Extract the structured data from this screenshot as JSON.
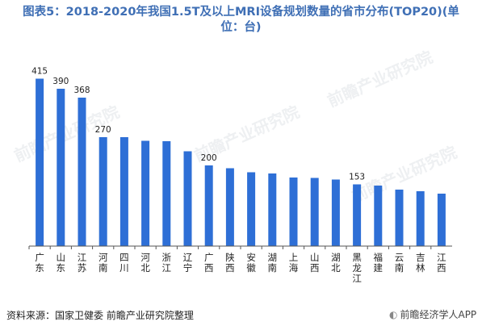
{
  "title_line1": "图表5：2018-2020年我国1.5T及以上MRI设备规划数量的省市分布(TOP20)(单",
  "title_line2": "位：台)",
  "source": "资料来源：国家卫健委 前瞻产业研究院整理",
  "watermark": "前瞻产业研究院",
  "app_logo": "前瞻经济学人APP",
  "colors": {
    "bar": "#2e6fd6",
    "title": "#3f6fb5",
    "axis": "#555555"
  },
  "chart_data": {
    "type": "bar",
    "title": "图表5：2018-2020年我国1.5T及以上MRI设备规划数量的省市分布(TOP20)(单位：台)",
    "xlabel": "",
    "ylabel": "",
    "ylim": [
      0,
      440
    ],
    "grid": false,
    "categories": [
      "广东",
      "山东",
      "江苏",
      "河南",
      "四川",
      "河北",
      "浙江",
      "辽宁",
      "广西",
      "陕西",
      "安徽",
      "湖南",
      "上海",
      "山西",
      "湖北",
      "黑龙江",
      "福建",
      "云南",
      "吉林",
      "江西"
    ],
    "values": [
      415,
      390,
      368,
      270,
      270,
      261,
      260,
      235,
      200,
      193,
      183,
      180,
      170,
      169,
      165,
      153,
      150,
      140,
      136,
      130
    ],
    "data_labels": [
      "415",
      "390",
      "368",
      "270",
      "",
      "",
      "",
      "",
      "200",
      "",
      "",
      "",
      "",
      "",
      "",
      "153",
      "",
      "",
      "",
      ""
    ]
  }
}
